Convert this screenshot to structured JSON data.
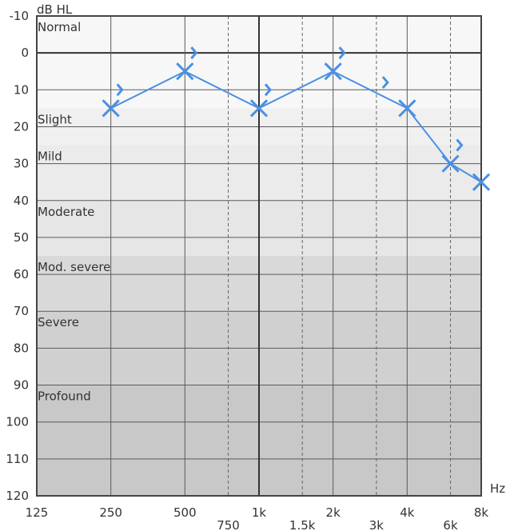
{
  "chart_data": {
    "type": "line",
    "y_unit": "dB HL",
    "x_unit": "Hz",
    "ylim": [
      -10,
      120
    ],
    "y_reversed": true,
    "y_ticks": [
      -10,
      0,
      10,
      20,
      30,
      40,
      50,
      60,
      70,
      80,
      90,
      100,
      110,
      120
    ],
    "x_scale": "log",
    "x_ticks_major": [
      {
        "value": 125,
        "label": "125"
      },
      {
        "value": 250,
        "label": "250"
      },
      {
        "value": 500,
        "label": "500"
      },
      {
        "value": 1000,
        "label": "1k"
      },
      {
        "value": 2000,
        "label": "2k"
      },
      {
        "value": 4000,
        "label": "4k"
      },
      {
        "value": 8000,
        "label": "8k"
      }
    ],
    "x_ticks_minor": [
      {
        "value": 750,
        "label": "750"
      },
      {
        "value": 1500,
        "label": "1.5k"
      },
      {
        "value": 3000,
        "label": "3k"
      },
      {
        "value": 6000,
        "label": "6k"
      }
    ],
    "bands": [
      {
        "label": "Normal",
        "from": -10,
        "to": 15,
        "color": "#f7f7f7"
      },
      {
        "label": "Slight",
        "from": 15,
        "to": 25,
        "color": "#f0f0f0"
      },
      {
        "label": "Mild",
        "from": 25,
        "to": 40,
        "color": "#ebebeb"
      },
      {
        "label": "Moderate",
        "from": 40,
        "to": 55,
        "color": "#e6e6e6"
      },
      {
        "label": "Mod. severe",
        "from": 55,
        "to": 70,
        "color": "#d9d9d9"
      },
      {
        "label": "Severe",
        "from": 70,
        "to": 90,
        "color": "#d0d0d0"
      },
      {
        "label": "Profound",
        "from": 90,
        "to": 120,
        "color": "#c8c8c8"
      }
    ],
    "series": [
      {
        "marker": "x",
        "color": "#4a90e2",
        "connected": true,
        "points": [
          {
            "x": 250,
            "y": 15
          },
          {
            "x": 500,
            "y": 5
          },
          {
            "x": 1000,
            "y": 15
          },
          {
            "x": 2000,
            "y": 5
          },
          {
            "x": 4000,
            "y": 15
          },
          {
            "x": 6000,
            "y": 30
          },
          {
            "x": 8000,
            "y": 35
          }
        ]
      },
      {
        "marker": ">",
        "color": "#4a90e2",
        "connected": false,
        "points": [
          {
            "x": 250,
            "y": 10
          },
          {
            "x": 500,
            "y": 0
          },
          {
            "x": 1000,
            "y": 10
          },
          {
            "x": 2000,
            "y": 0
          },
          {
            "x": 3000,
            "y": 8
          },
          {
            "x": 6000,
            "y": 25
          }
        ]
      }
    ],
    "grid": true
  }
}
